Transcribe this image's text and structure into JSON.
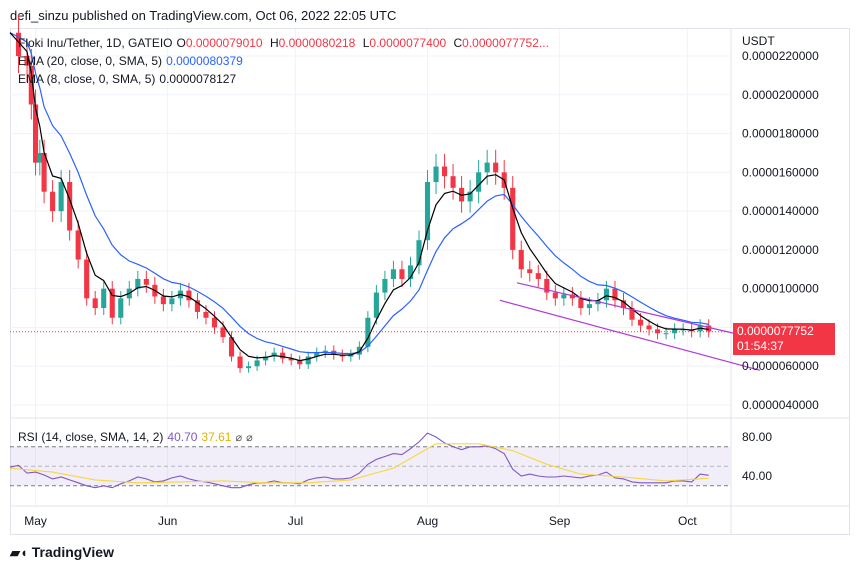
{
  "header": {
    "text": "defi_sinzu published on TradingView.com, Oct 06, 2022 22:05 UTC"
  },
  "symbol": {
    "name": "Floki Inu/Tether, 1D, GATEIO",
    "o_label": "O",
    "o": "0.0000079010",
    "h_label": "H",
    "h": "0.0000080218",
    "l_label": "L",
    "l": "0.0000077400",
    "c_label": "C",
    "c": "0.0000077752..."
  },
  "ema20": {
    "label": "EMA (20, close, 0, SMA, 5)",
    "value": "0.0000080379"
  },
  "ema8": {
    "label": "EMA (8, close, 0, SMA, 5)",
    "value": "0.0000078127"
  },
  "rsi_legend": {
    "label": "RSI (14, close, SMA, 14, 2)",
    "rsi": "40.70",
    "sma": "37.61",
    "eye1": "⌀",
    "eye2": "⌀"
  },
  "currency": "USDT",
  "price_tag": {
    "price": "0.0000077752",
    "countdown": "01:54:37"
  },
  "footer": {
    "brand": "TradingView"
  },
  "colors": {
    "up": "#26a69a",
    "down": "#f23645",
    "ema20": "#2962ff",
    "ema8": "#000000",
    "rsi": "#7e57c2",
    "rsi_sma": "#f5d742",
    "wedge": "#b03ad6"
  },
  "chart_data": [
    {
      "type": "candlestick",
      "title": "Floki Inu/Tether, 1D, GATEIO",
      "ylabel": "USDT",
      "ylim": [
        3.5e-06,
        2.35e-05
      ],
      "y_ticks": [
        "0.0000220000",
        "0.0000200000",
        "0.0000180000",
        "0.0000160000",
        "0.0000140000",
        "0.0000120000",
        "0.0000100000",
        "0.0000080000",
        "0.0000060000",
        "0.0000040000"
      ],
      "y_tick_values": [
        2.2e-05,
        2e-05,
        1.8e-05,
        1.6e-05,
        1.4e-05,
        1.2e-05,
        1e-05,
        8e-06,
        6e-06,
        4e-06
      ],
      "x_ticks": [
        "May",
        "Jun",
        "Jul",
        "Aug",
        "Sep",
        "Oct"
      ],
      "x_tick_days": [
        0,
        31,
        61,
        92,
        123,
        153
      ],
      "x_range_days": [
        -6,
        163
      ],
      "close_series": [
        [
          -6,
          23.2
        ],
        [
          -4,
          22.0
        ],
        [
          -2,
          21.5
        ],
        [
          -1,
          19.5
        ],
        [
          0,
          16.5
        ],
        [
          1,
          17.0
        ],
        [
          2,
          15.0
        ],
        [
          4,
          14.0
        ],
        [
          6,
          15.5
        ],
        [
          8,
          13.0
        ],
        [
          10,
          11.5
        ],
        [
          12,
          9.5
        ],
        [
          14,
          9.0
        ],
        [
          16,
          10.0
        ],
        [
          18,
          8.5
        ],
        [
          20,
          9.5
        ],
        [
          22,
          10.0
        ],
        [
          24,
          10.5
        ],
        [
          26,
          10.2
        ],
        [
          28,
          9.6
        ],
        [
          30,
          9.2
        ],
        [
          32,
          9.5
        ],
        [
          34,
          9.9
        ],
        [
          36,
          9.4
        ],
        [
          38,
          8.8
        ],
        [
          40,
          8.5
        ],
        [
          42,
          8.0
        ],
        [
          44,
          7.5
        ],
        [
          46,
          6.5
        ],
        [
          48,
          5.9
        ],
        [
          50,
          6.0
        ],
        [
          52,
          6.3
        ],
        [
          54,
          6.5
        ],
        [
          56,
          6.7
        ],
        [
          58,
          6.4
        ],
        [
          60,
          6.3
        ],
        [
          62,
          6.1
        ],
        [
          64,
          6.5
        ],
        [
          66,
          6.7
        ],
        [
          68,
          6.8
        ],
        [
          70,
          6.6
        ],
        [
          72,
          6.5
        ],
        [
          74,
          6.6
        ],
        [
          76,
          7.0
        ],
        [
          78,
          8.5
        ],
        [
          80,
          9.8
        ],
        [
          82,
          10.5
        ],
        [
          84,
          11.0
        ],
        [
          86,
          10.5
        ],
        [
          88,
          11.2
        ],
        [
          90,
          12.5
        ],
        [
          92,
          15.5
        ],
        [
          94,
          16.3
        ],
        [
          96,
          15.8
        ],
        [
          98,
          15.2
        ],
        [
          100,
          14.5
        ],
        [
          102,
          15.0
        ],
        [
          104,
          16.0
        ],
        [
          106,
          16.5
        ],
        [
          108,
          16.0
        ],
        [
          110,
          15.2
        ],
        [
          112,
          12.0
        ],
        [
          114,
          11.0
        ],
        [
          116,
          10.8
        ],
        [
          118,
          10.5
        ],
        [
          120,
          9.8
        ],
        [
          122,
          9.5
        ],
        [
          124,
          9.7
        ],
        [
          126,
          9.5
        ],
        [
          128,
          9.0
        ],
        [
          130,
          9.2
        ],
        [
          132,
          9.4
        ],
        [
          134,
          10.0
        ],
        [
          136,
          9.4
        ],
        [
          138,
          9.0
        ],
        [
          140,
          8.4
        ],
        [
          142,
          8.1
        ],
        [
          144,
          7.9
        ],
        [
          146,
          7.7
        ],
        [
          148,
          7.7
        ],
        [
          150,
          7.9
        ],
        [
          152,
          7.9
        ],
        [
          154,
          7.8
        ],
        [
          156,
          8.1
        ],
        [
          158,
          7.8
        ]
      ],
      "series": [
        {
          "name": "EMA (20, close, 0, SMA, 5)",
          "color": "#2962ff",
          "last": 8.0379e-06
        },
        {
          "name": "EMA (8, close, 0, SMA, 5)",
          "color": "#000000",
          "last": 7.8127e-06
        }
      ],
      "wedge_upper": [
        [
          113,
          10.3
        ],
        [
          158,
          8.0
        ]
      ],
      "wedge_lower": [
        [
          109,
          9.4
        ],
        [
          158,
          6.5
        ]
      ],
      "last_price": 7.7752e-06,
      "value_unit_note": "close_series values are in units of 1e-6 USDT"
    },
    {
      "type": "line",
      "title": "RSI (14, close, SMA, 14, 2)",
      "ylim": [
        20,
        90
      ],
      "y_ticks": [
        "80.00",
        "40.00"
      ],
      "y_tick_values": [
        80,
        40
      ],
      "bands": [
        70,
        50,
        30
      ],
      "x_range_days": [
        -6,
        163
      ],
      "series": [
        {
          "name": "RSI",
          "color": "#7e57c2",
          "last": 40.7,
          "values": [
            [
              -6,
              49
            ],
            [
              -4,
              51
            ],
            [
              -2,
              43
            ],
            [
              0,
              44
            ],
            [
              2,
              41
            ],
            [
              4,
              37
            ],
            [
              6,
              39
            ],
            [
              8,
              36
            ],
            [
              10,
              33
            ],
            [
              12,
              30
            ],
            [
              14,
              28
            ],
            [
              16,
              30
            ],
            [
              18,
              28
            ],
            [
              20,
              32
            ],
            [
              22,
              35
            ],
            [
              24,
              39
            ],
            [
              26,
              37
            ],
            [
              28,
              34
            ],
            [
              30,
              35
            ],
            [
              32,
              38
            ],
            [
              34,
              40
            ],
            [
              36,
              37
            ],
            [
              38,
              35
            ],
            [
              40,
              34
            ],
            [
              42,
              32
            ],
            [
              44,
              30
            ],
            [
              46,
              28
            ],
            [
              48,
              28
            ],
            [
              50,
              31
            ],
            [
              52,
              33
            ],
            [
              54,
              33
            ],
            [
              56,
              35
            ],
            [
              58,
              33
            ],
            [
              60,
              33
            ],
            [
              62,
              32
            ],
            [
              64,
              36
            ],
            [
              66,
              38
            ],
            [
              68,
              39
            ],
            [
              70,
              37
            ],
            [
              72,
              37
            ],
            [
              74,
              38
            ],
            [
              76,
              43
            ],
            [
              78,
              52
            ],
            [
              80,
              57
            ],
            [
              82,
              60
            ],
            [
              84,
              63
            ],
            [
              86,
              62
            ],
            [
              88,
              68
            ],
            [
              90,
              75
            ],
            [
              92,
              84
            ],
            [
              94,
              80
            ],
            [
              96,
              74
            ],
            [
              98,
              70
            ],
            [
              100,
              67
            ],
            [
              102,
              70
            ],
            [
              104,
              70
            ],
            [
              106,
              71
            ],
            [
              108,
              68
            ],
            [
              110,
              63
            ],
            [
              112,
              47
            ],
            [
              114,
              40
            ],
            [
              116,
              42
            ],
            [
              118,
              40
            ],
            [
              120,
              39
            ],
            [
              122,
              39
            ],
            [
              124,
              40
            ],
            [
              126,
              39
            ],
            [
              128,
              38
            ],
            [
              130,
              40
            ],
            [
              132,
              41
            ],
            [
              134,
              44
            ],
            [
              136,
              38
            ],
            [
              138,
              37
            ],
            [
              140,
              34
            ],
            [
              142,
              33
            ],
            [
              144,
              33
            ],
            [
              146,
              33
            ],
            [
              148,
              33
            ],
            [
              150,
              35
            ],
            [
              152,
              35
            ],
            [
              154,
              34
            ],
            [
              156,
              42
            ],
            [
              158,
              40.7
            ]
          ]
        },
        {
          "name": "RSI-based MA",
          "color": "#f5d742",
          "last": 37.61,
          "values": [
            [
              -6,
              48
            ],
            [
              4,
              44
            ],
            [
              14,
              36
            ],
            [
              24,
              33
            ],
            [
              34,
              34
            ],
            [
              44,
              35
            ],
            [
              54,
              33
            ],
            [
              64,
              33
            ],
            [
              74,
              36
            ],
            [
              84,
              48
            ],
            [
              94,
              73
            ],
            [
              104,
              73
            ],
            [
              112,
              66
            ],
            [
              120,
              52
            ],
            [
              128,
              42
            ],
            [
              138,
              39
            ],
            [
              148,
              35
            ],
            [
              158,
              37.6
            ]
          ]
        }
      ]
    }
  ]
}
